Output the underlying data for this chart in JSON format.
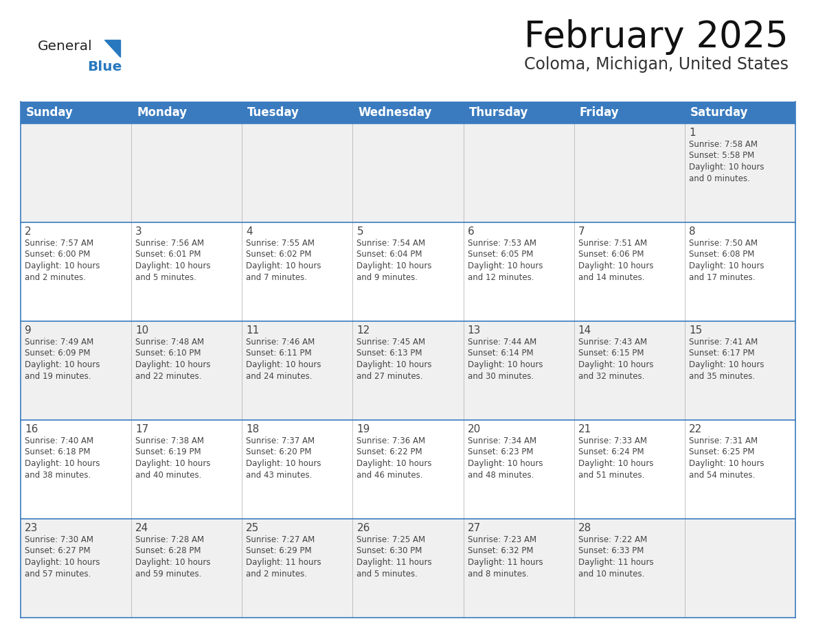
{
  "title": "February 2025",
  "subtitle": "Coloma, Michigan, United States",
  "header_color": "#3a7bbf",
  "header_text_color": "#ffffff",
  "border_color": "#3a7bbf",
  "day_number_color": "#444444",
  "text_color": "#444444",
  "row_colors": [
    "#f0f0f0",
    "#ffffff",
    "#f0f0f0",
    "#ffffff",
    "#f0f0f0"
  ],
  "days_of_week": [
    "Sunday",
    "Monday",
    "Tuesday",
    "Wednesday",
    "Thursday",
    "Friday",
    "Saturday"
  ],
  "weeks": [
    [
      {
        "day": "",
        "info": ""
      },
      {
        "day": "",
        "info": ""
      },
      {
        "day": "",
        "info": ""
      },
      {
        "day": "",
        "info": ""
      },
      {
        "day": "",
        "info": ""
      },
      {
        "day": "",
        "info": ""
      },
      {
        "day": "1",
        "info": "Sunrise: 7:58 AM\nSunset: 5:58 PM\nDaylight: 10 hours\nand 0 minutes."
      }
    ],
    [
      {
        "day": "2",
        "info": "Sunrise: 7:57 AM\nSunset: 6:00 PM\nDaylight: 10 hours\nand 2 minutes."
      },
      {
        "day": "3",
        "info": "Sunrise: 7:56 AM\nSunset: 6:01 PM\nDaylight: 10 hours\nand 5 minutes."
      },
      {
        "day": "4",
        "info": "Sunrise: 7:55 AM\nSunset: 6:02 PM\nDaylight: 10 hours\nand 7 minutes."
      },
      {
        "day": "5",
        "info": "Sunrise: 7:54 AM\nSunset: 6:04 PM\nDaylight: 10 hours\nand 9 minutes."
      },
      {
        "day": "6",
        "info": "Sunrise: 7:53 AM\nSunset: 6:05 PM\nDaylight: 10 hours\nand 12 minutes."
      },
      {
        "day": "7",
        "info": "Sunrise: 7:51 AM\nSunset: 6:06 PM\nDaylight: 10 hours\nand 14 minutes."
      },
      {
        "day": "8",
        "info": "Sunrise: 7:50 AM\nSunset: 6:08 PM\nDaylight: 10 hours\nand 17 minutes."
      }
    ],
    [
      {
        "day": "9",
        "info": "Sunrise: 7:49 AM\nSunset: 6:09 PM\nDaylight: 10 hours\nand 19 minutes."
      },
      {
        "day": "10",
        "info": "Sunrise: 7:48 AM\nSunset: 6:10 PM\nDaylight: 10 hours\nand 22 minutes."
      },
      {
        "day": "11",
        "info": "Sunrise: 7:46 AM\nSunset: 6:11 PM\nDaylight: 10 hours\nand 24 minutes."
      },
      {
        "day": "12",
        "info": "Sunrise: 7:45 AM\nSunset: 6:13 PM\nDaylight: 10 hours\nand 27 minutes."
      },
      {
        "day": "13",
        "info": "Sunrise: 7:44 AM\nSunset: 6:14 PM\nDaylight: 10 hours\nand 30 minutes."
      },
      {
        "day": "14",
        "info": "Sunrise: 7:43 AM\nSunset: 6:15 PM\nDaylight: 10 hours\nand 32 minutes."
      },
      {
        "day": "15",
        "info": "Sunrise: 7:41 AM\nSunset: 6:17 PM\nDaylight: 10 hours\nand 35 minutes."
      }
    ],
    [
      {
        "day": "16",
        "info": "Sunrise: 7:40 AM\nSunset: 6:18 PM\nDaylight: 10 hours\nand 38 minutes."
      },
      {
        "day": "17",
        "info": "Sunrise: 7:38 AM\nSunset: 6:19 PM\nDaylight: 10 hours\nand 40 minutes."
      },
      {
        "day": "18",
        "info": "Sunrise: 7:37 AM\nSunset: 6:20 PM\nDaylight: 10 hours\nand 43 minutes."
      },
      {
        "day": "19",
        "info": "Sunrise: 7:36 AM\nSunset: 6:22 PM\nDaylight: 10 hours\nand 46 minutes."
      },
      {
        "day": "20",
        "info": "Sunrise: 7:34 AM\nSunset: 6:23 PM\nDaylight: 10 hours\nand 48 minutes."
      },
      {
        "day": "21",
        "info": "Sunrise: 7:33 AM\nSunset: 6:24 PM\nDaylight: 10 hours\nand 51 minutes."
      },
      {
        "day": "22",
        "info": "Sunrise: 7:31 AM\nSunset: 6:25 PM\nDaylight: 10 hours\nand 54 minutes."
      }
    ],
    [
      {
        "day": "23",
        "info": "Sunrise: 7:30 AM\nSunset: 6:27 PM\nDaylight: 10 hours\nand 57 minutes."
      },
      {
        "day": "24",
        "info": "Sunrise: 7:28 AM\nSunset: 6:28 PM\nDaylight: 10 hours\nand 59 minutes."
      },
      {
        "day": "25",
        "info": "Sunrise: 7:27 AM\nSunset: 6:29 PM\nDaylight: 11 hours\nand 2 minutes."
      },
      {
        "day": "26",
        "info": "Sunrise: 7:25 AM\nSunset: 6:30 PM\nDaylight: 11 hours\nand 5 minutes."
      },
      {
        "day": "27",
        "info": "Sunrise: 7:23 AM\nSunset: 6:32 PM\nDaylight: 11 hours\nand 8 minutes."
      },
      {
        "day": "28",
        "info": "Sunrise: 7:22 AM\nSunset: 6:33 PM\nDaylight: 11 hours\nand 10 minutes."
      },
      {
        "day": "",
        "info": ""
      }
    ]
  ],
  "logo_general_color": "#222222",
  "logo_blue_color": "#2878be",
  "title_fontsize": 38,
  "subtitle_fontsize": 17,
  "header_fontsize": 12,
  "day_num_fontsize": 11,
  "cell_text_fontsize": 8.5
}
